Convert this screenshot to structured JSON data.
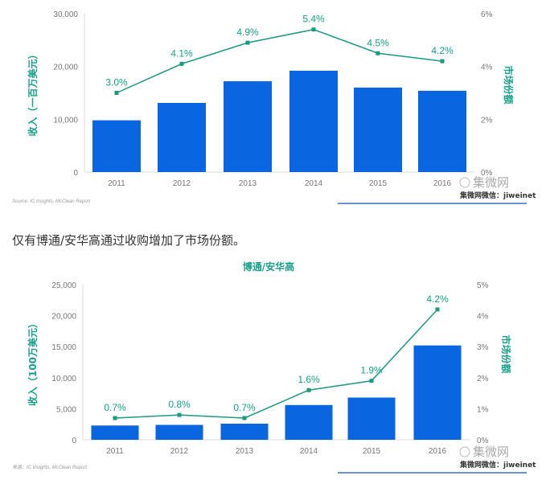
{
  "caption": "仅有博通/安华高通过收购增加了市场份额。",
  "watermark": {
    "logo": "集微网",
    "wechat": "集微网微信：jiweinet"
  },
  "colors": {
    "bar": "#0a66e0",
    "line": "#1a9a80",
    "text": "#17a08a"
  },
  "chart_data": [
    {
      "type": "bar",
      "title": "",
      "categories": [
        "2011",
        "2012",
        "2013",
        "2014",
        "2015",
        "2016"
      ],
      "series": [
        {
          "name": "收入",
          "type": "bar",
          "axis": "left",
          "values": [
            9800,
            13100,
            17200,
            19200,
            16000,
            15400
          ]
        },
        {
          "name": "市场份额",
          "type": "line",
          "axis": "right",
          "values": [
            3.0,
            4.1,
            4.9,
            5.4,
            4.5,
            4.2
          ],
          "labels": [
            "3.0%",
            "4.1%",
            "4.9%",
            "5.4%",
            "4.5%",
            "4.2%"
          ]
        }
      ],
      "ylabel": "收入（一百万美元）",
      "y2label": "市场份额",
      "ylim": [
        0,
        30000
      ],
      "y2lim": [
        0,
        6
      ],
      "yticks": [
        "0",
        "10,000",
        "20,000",
        "30,000"
      ],
      "y2ticks": [
        "0%",
        "2%",
        "4%",
        "6%"
      ],
      "source": "Source: IC Insights, McClean Report"
    },
    {
      "type": "bar",
      "title": "博通/安华高",
      "categories": [
        "2011",
        "2012",
        "2013",
        "2014",
        "2015",
        "2016"
      ],
      "series": [
        {
          "name": "收入",
          "type": "bar",
          "axis": "left",
          "values": [
            2300,
            2400,
            2600,
            5600,
            6800,
            15200
          ]
        },
        {
          "name": "市场份额",
          "type": "line",
          "axis": "right",
          "values": [
            0.7,
            0.8,
            0.7,
            1.6,
            1.9,
            4.2
          ],
          "labels": [
            "0.7%",
            "0.8%",
            "0.7%",
            "1.6%",
            "1.9%",
            "4.2%"
          ]
        }
      ],
      "ylabel": "收入（100万美元）",
      "y2label": "市场份额",
      "ylim": [
        0,
        25000
      ],
      "y2lim": [
        0,
        5
      ],
      "yticks": [
        "0",
        "5,000",
        "10,000",
        "15,000",
        "20,000",
        "25,000"
      ],
      "y2ticks": [
        "0%",
        "1%",
        "2%",
        "3%",
        "4%",
        "5%"
      ],
      "source": "来源：IC Insights, McClean Report"
    }
  ]
}
